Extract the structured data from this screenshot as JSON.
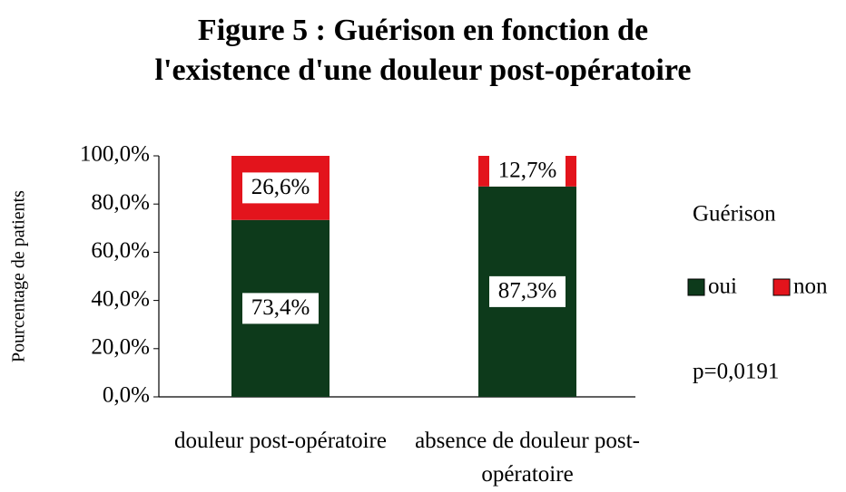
{
  "chart_data": {
    "type": "stacked_bar",
    "title": "Figure 5 : Guérison en fonction de l'existence d'une douleur post-opératoire",
    "ylabel": "Pourcentage de patients",
    "categories": [
      "douleur post-opératoire",
      "absence de douleur post-opératoire"
    ],
    "series": [
      {
        "name": "oui",
        "color": "#0d3a1b",
        "values": [
          73.4,
          87.3
        ],
        "value_labels": [
          "73,4%",
          "87,3%"
        ]
      },
      {
        "name": "non",
        "color": "#e3141c",
        "values": [
          26.6,
          12.7
        ],
        "value_labels": [
          "26,6%",
          "12,7%"
        ]
      }
    ],
    "ylim": [
      0,
      100
    ],
    "yticks": [
      {
        "value": 0,
        "label": "0,0%"
      },
      {
        "value": 20,
        "label": "20,0%"
      },
      {
        "value": 40,
        "label": "40,0%"
      },
      {
        "value": 60,
        "label": "60,0%"
      },
      {
        "value": 80,
        "label": "80,0%"
      },
      {
        "value": 100,
        "label": "100,0%"
      }
    ],
    "legend_title": "Guérison",
    "annotation": "p=0,0191"
  }
}
